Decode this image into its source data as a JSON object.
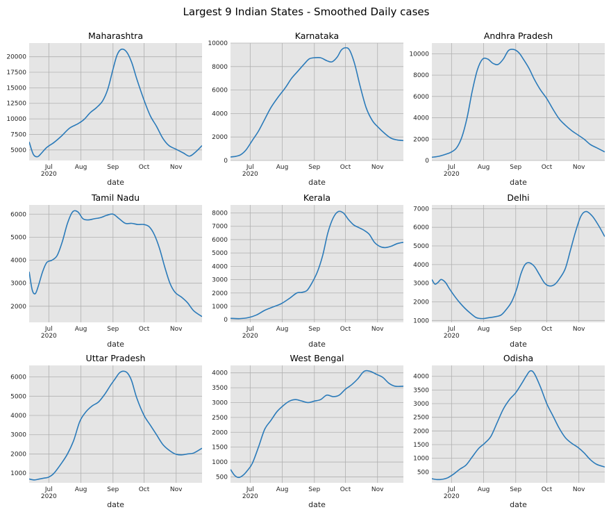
{
  "figure_title": "Largest 9 Indian States - Smoothed Daily cases",
  "chart_data": [
    {
      "type": "line",
      "title": "Maharashtra",
      "xlabel": "date",
      "x_ticks": [
        "Jul\n2020",
        "Aug",
        "Sep",
        "Oct",
        "Nov"
      ],
      "x_tick_days": [
        0,
        31,
        62,
        92,
        123
      ],
      "xlim_days": [
        -19,
        148
      ],
      "ylim": [
        3300,
        22200
      ],
      "y_ticks": [
        5000,
        7500,
        10000,
        12500,
        15000,
        17500,
        20000
      ],
      "x_days": [
        -19,
        -15,
        -11,
        -7,
        -2,
        5,
        12,
        20,
        28,
        34,
        40,
        46,
        52,
        57,
        62,
        66,
        70,
        75,
        80,
        85,
        92,
        98,
        104,
        110,
        116,
        123,
        130,
        136,
        142,
        148
      ],
      "values": [
        6300,
        4300,
        3900,
        4500,
        5400,
        6200,
        7200,
        8500,
        9200,
        9900,
        11000,
        11800,
        12900,
        14800,
        18000,
        20300,
        21200,
        20800,
        19100,
        16400,
        13000,
        10500,
        8800,
        6900,
        5700,
        5100,
        4500,
        4000,
        4700,
        5700
      ]
    },
    {
      "type": "line",
      "title": "Karnataka",
      "xlabel": "date",
      "x_ticks": [
        "Jul\n2020",
        "Aug",
        "Sep",
        "Oct",
        "Nov"
      ],
      "x_tick_days": [
        0,
        31,
        62,
        92,
        123
      ],
      "xlim_days": [
        -19,
        148
      ],
      "ylim": [
        0,
        10000
      ],
      "y_ticks": [
        0,
        2000,
        4000,
        6000,
        8000,
        10000
      ],
      "x_days": [
        -19,
        -14,
        -9,
        -4,
        2,
        8,
        14,
        20,
        27,
        34,
        40,
        46,
        52,
        57,
        62,
        68,
        74,
        79,
        84,
        88,
        92,
        96,
        101,
        106,
        112,
        118,
        124,
        130,
        136,
        142,
        148
      ],
      "values": [
        300,
        350,
        500,
        900,
        1700,
        2500,
        3500,
        4500,
        5400,
        6200,
        7000,
        7600,
        8200,
        8650,
        8750,
        8750,
        8500,
        8400,
        8800,
        9400,
        9600,
        9400,
        8200,
        6400,
        4500,
        3400,
        2800,
        2300,
        1900,
        1750,
        1700
      ]
    },
    {
      "type": "line",
      "title": "Andhra Pradesh",
      "xlabel": "date",
      "x_ticks": [
        "Jul\n2020",
        "Aug",
        "Sep",
        "Oct",
        "Nov"
      ],
      "x_tick_days": [
        0,
        31,
        62,
        92,
        123
      ],
      "xlim_days": [
        -19,
        148
      ],
      "ylim": [
        0,
        11000
      ],
      "y_ticks": [
        0,
        2000,
        4000,
        6000,
        8000,
        10000
      ],
      "x_days": [
        -19,
        -12,
        -5,
        0,
        5,
        10,
        15,
        20,
        25,
        30,
        35,
        40,
        45,
        50,
        55,
        60,
        65,
        70,
        75,
        80,
        86,
        92,
        98,
        104,
        110,
        116,
        122,
        128,
        134,
        140,
        148
      ],
      "values": [
        300,
        400,
        600,
        800,
        1200,
        2200,
        4000,
        6500,
        8500,
        9500,
        9500,
        9100,
        9000,
        9500,
        10300,
        10400,
        10100,
        9400,
        8600,
        7600,
        6600,
        5800,
        4800,
        3900,
        3300,
        2800,
        2400,
        2000,
        1500,
        1200,
        800
      ]
    },
    {
      "type": "line",
      "title": "Tamil Nadu",
      "xlabel": "date",
      "x_ticks": [
        "Jul\n2020",
        "Aug",
        "Sep",
        "Oct",
        "Nov"
      ],
      "x_tick_days": [
        0,
        31,
        62,
        92,
        123
      ],
      "xlim_days": [
        -19,
        148
      ],
      "ylim": [
        1300,
        6400
      ],
      "y_ticks": [
        2000,
        3000,
        4000,
        5000,
        6000
      ],
      "x_days": [
        -19,
        -16,
        -13,
        -10,
        -6,
        -2,
        3,
        8,
        13,
        18,
        23,
        28,
        33,
        38,
        44,
        50,
        56,
        62,
        68,
        74,
        80,
        86,
        92,
        97,
        102,
        107,
        112,
        117,
        122,
        128,
        134,
        140,
        148
      ],
      "values": [
        3500,
        2700,
        2550,
        2900,
        3500,
        3900,
        4000,
        4200,
        4800,
        5600,
        6100,
        6100,
        5800,
        5750,
        5800,
        5850,
        5950,
        6000,
        5800,
        5600,
        5600,
        5550,
        5550,
        5450,
        5100,
        4500,
        3700,
        3000,
        2600,
        2400,
        2150,
        1800,
        1550
      ]
    },
    {
      "type": "line",
      "title": "Kerala",
      "xlabel": "date",
      "x_ticks": [
        "Jul\n2020",
        "Aug",
        "Sep",
        "Oct",
        "Nov"
      ],
      "x_tick_days": [
        0,
        31,
        62,
        92,
        123
      ],
      "xlim_days": [
        -19,
        148
      ],
      "ylim": [
        -200,
        8600
      ],
      "y_ticks": [
        0,
        1000,
        2000,
        3000,
        4000,
        5000,
        6000,
        7000,
        8000
      ],
      "x_days": [
        -19,
        -10,
        -2,
        6,
        14,
        22,
        30,
        38,
        45,
        50,
        55,
        60,
        65,
        70,
        75,
        80,
        85,
        90,
        95,
        100,
        105,
        110,
        115,
        120,
        125,
        130,
        136,
        142,
        148
      ],
      "values": [
        100,
        80,
        150,
        350,
        700,
        950,
        1200,
        1600,
        2000,
        2050,
        2200,
        2800,
        3600,
        4800,
        6500,
        7600,
        8100,
        8000,
        7500,
        7100,
        6900,
        6700,
        6400,
        5800,
        5500,
        5400,
        5500,
        5700,
        5800
      ]
    },
    {
      "type": "line",
      "title": "Delhi",
      "xlabel": "date",
      "x_ticks": [
        "Jul\n2020",
        "Aug",
        "Sep",
        "Oct",
        "Nov"
      ],
      "x_tick_days": [
        0,
        31,
        62,
        92,
        123
      ],
      "xlim_days": [
        -19,
        148
      ],
      "ylim": [
        900,
        7200
      ],
      "y_ticks": [
        1000,
        2000,
        3000,
        4000,
        5000,
        6000,
        7000
      ],
      "x_days": [
        -19,
        -16,
        -13,
        -10,
        -6,
        -2,
        3,
        8,
        13,
        18,
        24,
        30,
        36,
        42,
        48,
        53,
        58,
        63,
        67,
        71,
        75,
        80,
        85,
        90,
        95,
        100,
        105,
        110,
        115,
        120,
        125,
        130,
        136,
        142,
        148
      ],
      "values": [
        3200,
        2950,
        3050,
        3200,
        3050,
        2700,
        2300,
        1950,
        1650,
        1400,
        1150,
        1100,
        1150,
        1200,
        1300,
        1600,
        2000,
        2700,
        3500,
        4000,
        4100,
        3900,
        3450,
        3000,
        2850,
        2950,
        3300,
        3800,
        4800,
        5800,
        6600,
        6850,
        6600,
        6100,
        5500
      ]
    },
    {
      "type": "line",
      "title": "Uttar Pradesh",
      "xlabel": "date",
      "x_ticks": [
        "Jul\n2020",
        "Aug",
        "Sep",
        "Oct",
        "Nov"
      ],
      "x_tick_days": [
        0,
        31,
        62,
        92,
        123
      ],
      "xlim_days": [
        -19,
        148
      ],
      "ylim": [
        500,
        6600
      ],
      "y_ticks": [
        1000,
        2000,
        3000,
        4000,
        5000,
        6000
      ],
      "x_days": [
        -19,
        -14,
        -9,
        -4,
        0,
        5,
        12,
        18,
        24,
        30,
        36,
        42,
        48,
        54,
        60,
        64,
        68,
        72,
        76,
        80,
        85,
        92,
        98,
        104,
        110,
        116,
        122,
        128,
        134,
        140,
        148
      ],
      "values": [
        700,
        650,
        700,
        750,
        800,
        1000,
        1500,
        2000,
        2700,
        3700,
        4200,
        4500,
        4700,
        5100,
        5600,
        5900,
        6200,
        6300,
        6200,
        5800,
        4900,
        4000,
        3500,
        3000,
        2500,
        2200,
        2000,
        1950,
        2000,
        2050,
        2300
      ]
    },
    {
      "type": "line",
      "title": "West Bengal",
      "xlabel": "date",
      "x_ticks": [
        "Jul\n2020",
        "Aug",
        "Sep",
        "Oct",
        "Nov"
      ],
      "x_tick_days": [
        0,
        31,
        62,
        92,
        123
      ],
      "xlim_days": [
        -19,
        148
      ],
      "ylim": [
        300,
        4250
      ],
      "y_ticks": [
        500,
        1000,
        1500,
        2000,
        2500,
        3000,
        3500,
        4000
      ],
      "x_days": [
        -19,
        -15,
        -11,
        -7,
        -3,
        2,
        8,
        14,
        20,
        26,
        32,
        38,
        44,
        50,
        56,
        62,
        68,
        74,
        80,
        86,
        92,
        98,
        104,
        110,
        116,
        122,
        128,
        134,
        140,
        148
      ],
      "values": [
        750,
        550,
        480,
        550,
        700,
        950,
        1500,
        2100,
        2400,
        2700,
        2900,
        3050,
        3100,
        3050,
        3000,
        3050,
        3100,
        3250,
        3200,
        3250,
        3450,
        3600,
        3800,
        4050,
        4050,
        3950,
        3850,
        3650,
        3550,
        3550
      ]
    },
    {
      "type": "line",
      "title": "Odisha",
      "xlabel": "date",
      "x_ticks": [
        "Jul\n2020",
        "Aug",
        "Sep",
        "Oct",
        "Nov"
      ],
      "x_tick_days": [
        0,
        31,
        62,
        92,
        123
      ],
      "xlim_days": [
        -19,
        148
      ],
      "ylim": [
        100,
        4400
      ],
      "y_ticks": [
        500,
        1000,
        1500,
        2000,
        2500,
        3000,
        3500,
        4000
      ],
      "x_days": [
        -19,
        -14,
        -9,
        -4,
        2,
        8,
        14,
        20,
        26,
        32,
        38,
        44,
        50,
        56,
        62,
        68,
        72,
        76,
        80,
        86,
        92,
        98,
        104,
        110,
        116,
        122,
        128,
        134,
        140,
        148
      ],
      "values": [
        250,
        220,
        230,
        280,
        420,
        600,
        750,
        1050,
        1350,
        1550,
        1800,
        2300,
        2800,
        3150,
        3400,
        3750,
        4000,
        4200,
        4100,
        3600,
        3000,
        2550,
        2100,
        1750,
        1550,
        1400,
        1200,
        950,
        780,
        680
      ]
    }
  ]
}
